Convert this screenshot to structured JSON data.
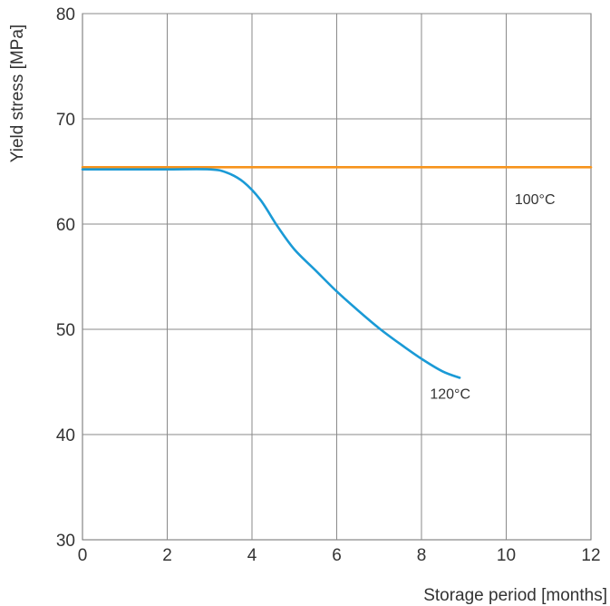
{
  "chart_data": {
    "type": "line",
    "title": "",
    "xlabel": "Storage period [months]",
    "ylabel": "Yield stress [MPa]",
    "xlim": [
      0,
      12
    ],
    "ylim": [
      30,
      80
    ],
    "x_ticks": [
      0,
      2,
      4,
      6,
      8,
      10,
      12
    ],
    "y_ticks": [
      30,
      40,
      50,
      60,
      70,
      80
    ],
    "x_tick_labels": [
      "0",
      "2",
      "4",
      "6",
      "8",
      "10",
      "12"
    ],
    "y_tick_labels": [
      "30",
      "40",
      "50",
      "60",
      "70",
      "80"
    ],
    "grid": true,
    "legend": "none",
    "series": [
      {
        "name": "100°C",
        "color": "#f7941d",
        "x": [
          0,
          12
        ],
        "y": [
          65.4,
          65.4
        ]
      },
      {
        "name": "120°C",
        "color": "#1a9ad6",
        "x": [
          0,
          1,
          2,
          3,
          3.4,
          3.8,
          4.2,
          4.6,
          5,
          5.5,
          6,
          6.5,
          7,
          7.5,
          8,
          8.5,
          8.9
        ],
        "y": [
          65.2,
          65.2,
          65.2,
          65.2,
          64.9,
          64.0,
          62.3,
          59.8,
          57.6,
          55.6,
          53.6,
          51.8,
          50.1,
          48.6,
          47.2,
          46.0,
          45.4
        ]
      }
    ]
  }
}
